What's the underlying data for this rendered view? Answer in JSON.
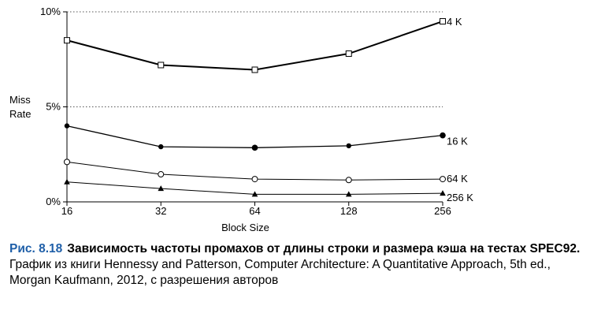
{
  "chart_data": {
    "type": "line",
    "x": [
      16,
      32,
      64,
      128,
      256
    ],
    "x_tick_labels": [
      "16",
      "32",
      "64",
      "128",
      "256"
    ],
    "xscale": "log2",
    "xlabel": "Block Size",
    "ylabel_lines": [
      "Miss",
      "Rate"
    ],
    "y_ticks": [
      0,
      5,
      10
    ],
    "y_tick_labels": [
      "0%",
      "5%",
      "10%"
    ],
    "ylim": [
      0,
      10
    ],
    "grid": "dotted horizontal at 5% and 10%",
    "series": [
      {
        "name": "4 K",
        "marker": "open-square",
        "values": [
          8.5,
          7.2,
          6.95,
          7.8,
          9.5
        ]
      },
      {
        "name": "16 K",
        "marker": "filled-circle",
        "values": [
          4.0,
          2.9,
          2.85,
          2.95,
          3.5
        ]
      },
      {
        "name": "64 K",
        "marker": "open-circle",
        "values": [
          2.1,
          1.45,
          1.2,
          1.15,
          1.2
        ]
      },
      {
        "name": "256 K",
        "marker": "filled-triangle",
        "values": [
          1.05,
          0.7,
          0.4,
          0.4,
          0.45
        ]
      }
    ]
  },
  "caption": {
    "figure_number": "Рис. 8.18",
    "title": "Зависимость частоты промахов от длины строки и размера кэша на тестах SPEC92.",
    "source": "График из книги Hennessy and Patterson, Computer Architecture: A Quantitative Approach, 5th ed., Morgan Kaufmann, 2012, с разрешения авторов"
  }
}
